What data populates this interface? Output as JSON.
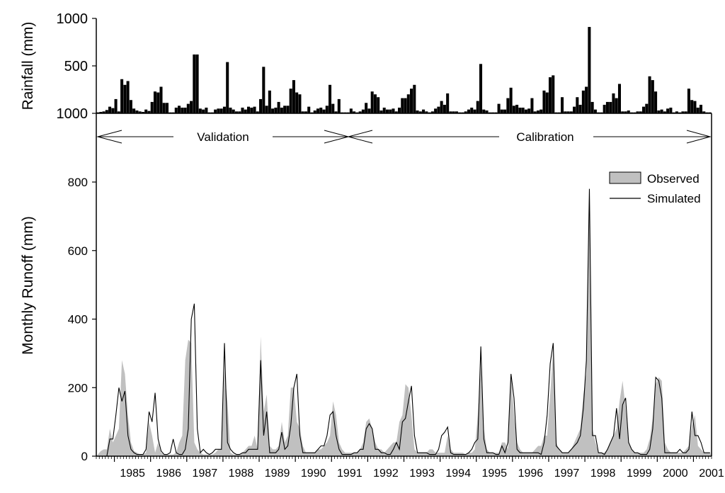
{
  "chart_data": [
    {
      "type": "bar",
      "ylabel": "Rainfall (mm)",
      "ytick_labels": [
        "1000",
        "500",
        "1000"
      ],
      "ylim_top_value": 1000,
      "ylim_value": [
        0,
        1000
      ],
      "note": "y-axis is inverted: upper tick label 1000, middle 500, bottom label printed as 1000",
      "x_range": [
        "1984-07",
        "2001-12"
      ],
      "monthly_values": [
        10,
        15,
        20,
        35,
        70,
        55,
        150,
        20,
        360,
        300,
        340,
        140,
        50,
        30,
        20,
        15,
        40,
        25,
        120,
        230,
        220,
        280,
        110,
        110,
        10,
        10,
        60,
        80,
        60,
        60,
        100,
        130,
        620,
        620,
        50,
        40,
        60,
        10,
        10,
        40,
        50,
        50,
        70,
        540,
        60,
        40,
        20,
        20,
        60,
        40,
        70,
        60,
        70,
        20,
        150,
        490,
        80,
        240,
        50,
        60,
        120,
        60,
        80,
        80,
        260,
        350,
        220,
        200,
        20,
        20,
        70,
        10,
        30,
        50,
        60,
        40,
        80,
        300,
        100,
        20,
        150,
        10,
        10,
        10,
        50,
        20,
        10,
        20,
        40,
        110,
        50,
        230,
        200,
        170,
        30,
        60,
        40,
        40,
        50,
        20,
        60,
        160,
        160,
        200,
        260,
        300,
        30,
        20,
        40,
        20,
        10,
        20,
        50,
        70,
        130,
        90,
        210,
        20,
        20,
        20,
        10,
        10,
        20,
        40,
        60,
        40,
        130,
        520,
        40,
        30,
        10,
        10,
        10,
        100,
        40,
        40,
        160,
        270,
        80,
        90,
        60,
        60,
        40,
        50,
        160,
        20,
        30,
        40,
        240,
        220,
        380,
        400,
        10,
        10,
        170,
        20,
        20,
        20,
        70,
        170,
        90,
        240,
        280,
        910,
        120,
        40,
        10,
        10,
        90,
        120,
        120,
        210,
        160,
        310,
        20,
        20,
        30,
        10,
        10,
        20,
        20,
        70,
        100,
        390,
        350,
        230,
        30,
        40,
        20,
        50,
        60,
        10,
        20,
        10,
        20,
        20,
        260,
        140,
        130,
        60,
        90,
        20,
        10,
        10
      ]
    },
    {
      "type": "area",
      "ylabel": "Monthly Runoff (mm)",
      "ylim": [
        0,
        800
      ],
      "yticks": [
        "0",
        "200",
        "400",
        "600",
        "800"
      ],
      "xticks": [
        "1985",
        "1986",
        "1987",
        "1988",
        "1989",
        "1990",
        "1991",
        "1992",
        "1993",
        "1994",
        "1995",
        "1996",
        "1997",
        "1998",
        "1999",
        "2000",
        "2001"
      ],
      "x_range": [
        "1984-07",
        "2001-12"
      ],
      "legend_position": "top-right",
      "legend": [
        "Observed",
        "Simulated"
      ],
      "annotations": {
        "validation_label": "Validation",
        "calibration_label": "Calibration",
        "validation_period": [
          "1984-07",
          "1991-12"
        ],
        "calibration_period": [
          "1991-12",
          "2001-12"
        ]
      },
      "series": [
        {
          "name": "Observed",
          "style": "filled-area",
          "color": "#c0c0c0",
          "values": [
            5,
            15,
            20,
            20,
            80,
            40,
            60,
            80,
            280,
            240,
            120,
            40,
            15,
            10,
            5,
            5,
            10,
            100,
            60,
            10,
            40,
            10,
            5,
            5,
            5,
            5,
            10,
            40,
            60,
            280,
            340,
            330,
            40,
            20,
            10,
            5,
            5,
            5,
            5,
            10,
            20,
            20,
            250,
            160,
            10,
            5,
            5,
            5,
            10,
            20,
            30,
            30,
            60,
            20,
            350,
            130,
            180,
            30,
            20,
            20,
            30,
            100,
            40,
            60,
            200,
            200,
            100,
            80,
            30,
            10,
            10,
            10,
            10,
            20,
            20,
            30,
            40,
            60,
            160,
            120,
            40,
            20,
            10,
            10,
            10,
            10,
            10,
            20,
            40,
            100,
            110,
            80,
            40,
            20,
            20,
            10,
            20,
            30,
            40,
            40,
            100,
            120,
            210,
            200,
            120,
            20,
            10,
            10,
            10,
            10,
            20,
            20,
            10,
            10,
            10,
            10,
            60,
            20,
            10,
            10,
            10,
            10,
            5,
            10,
            10,
            20,
            120,
            260,
            80,
            20,
            10,
            10,
            10,
            10,
            40,
            40,
            20,
            240,
            120,
            40,
            20,
            10,
            10,
            10,
            10,
            20,
            30,
            30,
            60,
            60,
            180,
            310,
            40,
            20,
            10,
            10,
            10,
            20,
            40,
            60,
            80,
            180,
            240,
            780,
            80,
            40,
            10,
            10,
            10,
            20,
            40,
            60,
            80,
            160,
            220,
            140,
            40,
            20,
            10,
            10,
            10,
            10,
            20,
            50,
            110,
            210,
            230,
            220,
            40,
            20,
            10,
            10,
            10,
            10,
            10,
            20,
            30,
            90,
            120,
            30,
            20,
            10,
            10,
            10
          ]
        },
        {
          "name": "Simulated",
          "style": "line",
          "color": "#000000",
          "values": [
            0,
            0,
            0,
            0,
            50,
            50,
            120,
            200,
            160,
            190,
            60,
            20,
            10,
            5,
            5,
            5,
            20,
            130,
            100,
            185,
            50,
            15,
            5,
            5,
            10,
            50,
            10,
            5,
            5,
            20,
            80,
            400,
            445,
            80,
            10,
            20,
            10,
            5,
            10,
            20,
            20,
            20,
            330,
            40,
            20,
            10,
            5,
            5,
            10,
            10,
            20,
            20,
            20,
            20,
            280,
            60,
            130,
            10,
            10,
            10,
            20,
            70,
            20,
            30,
            90,
            200,
            240,
            60,
            10,
            10,
            10,
            10,
            10,
            20,
            30,
            30,
            60,
            120,
            130,
            60,
            20,
            5,
            5,
            5,
            5,
            10,
            10,
            20,
            20,
            80,
            95,
            80,
            20,
            20,
            10,
            10,
            5,
            5,
            20,
            40,
            20,
            100,
            110,
            160,
            205,
            60,
            10,
            10,
            10,
            10,
            5,
            5,
            5,
            20,
            60,
            70,
            85,
            10,
            5,
            5,
            5,
            5,
            5,
            10,
            20,
            40,
            50,
            320,
            50,
            10,
            10,
            10,
            5,
            5,
            30,
            10,
            40,
            240,
            170,
            20,
            10,
            10,
            10,
            10,
            10,
            10,
            10,
            5,
            40,
            120,
            270,
            330,
            30,
            20,
            10,
            10,
            10,
            20,
            30,
            40,
            60,
            140,
            280,
            780,
            60,
            60,
            10,
            10,
            5,
            20,
            40,
            60,
            140,
            50,
            150,
            170,
            40,
            20,
            10,
            10,
            5,
            5,
            5,
            20,
            80,
            230,
            220,
            170,
            10,
            10,
            10,
            10,
            10,
            20,
            10,
            10,
            20,
            130,
            60,
            60,
            40,
            10,
            10,
            10
          ]
        }
      ]
    }
  ]
}
